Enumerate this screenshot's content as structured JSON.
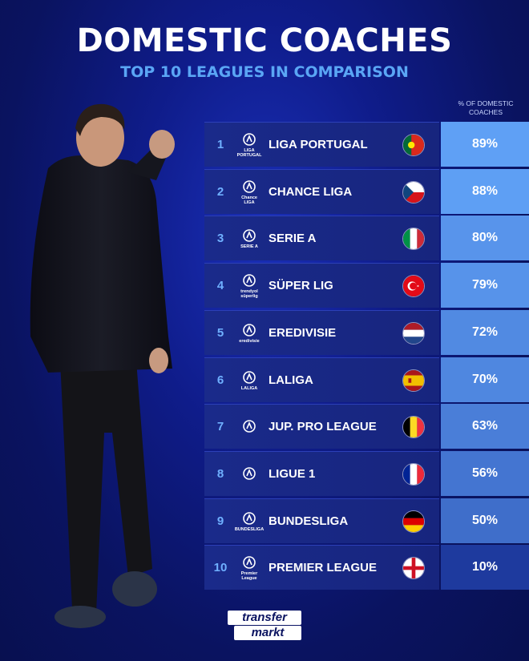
{
  "header": {
    "title": "DOMESTIC COACHES",
    "subtitle": "TOP 10 LEAGUES IN COMPARISON",
    "column_label": "% OF DOMESTIC COACHES"
  },
  "brand": {
    "line1": "transfer",
    "line2": "markt"
  },
  "colors": {
    "accent_blue": "#5aa6f5",
    "row_bg": "#1a2a8a",
    "pct_high": "#4f8fe6",
    "pct_low": "#1e3a9e"
  },
  "chart_data": {
    "type": "table",
    "title": "DOMESTIC COACHES",
    "subtitle": "TOP 10 LEAGUES IN COMPARISON",
    "ylabel": "% OF DOMESTIC COACHES",
    "rows": [
      {
        "rank": "1",
        "league": "LIGA PORTUGAL",
        "logo_text": "LIGA PORTUGAL",
        "country": "portugal",
        "value": 89,
        "label": "89%"
      },
      {
        "rank": "2",
        "league": "CHANCE LIGA",
        "logo_text": "Chance LIGA",
        "country": "czechia",
        "value": 88,
        "label": "88%"
      },
      {
        "rank": "3",
        "league": "SERIE A",
        "logo_text": "SERIE A",
        "country": "italy",
        "value": 80,
        "label": "80%"
      },
      {
        "rank": "4",
        "league": "SÜPER LIG",
        "logo_text": "trendyol süperlig",
        "country": "turkey",
        "value": 79,
        "label": "79%"
      },
      {
        "rank": "5",
        "league": "EREDIVISIE",
        "logo_text": "eredivisie",
        "country": "netherlands",
        "value": 72,
        "label": "72%"
      },
      {
        "rank": "6",
        "league": "LALIGA",
        "logo_text": "LALIGA",
        "country": "spain",
        "value": 70,
        "label": "70%"
      },
      {
        "rank": "7",
        "league": "JUP. PRO LEAGUE",
        "logo_text": "",
        "country": "belgium",
        "value": 63,
        "label": "63%"
      },
      {
        "rank": "8",
        "league": "LIGUE 1",
        "logo_text": "",
        "country": "france",
        "value": 56,
        "label": "56%"
      },
      {
        "rank": "9",
        "league": "BUNDESLIGA",
        "logo_text": "BUNDESLIGA",
        "country": "germany",
        "value": 50,
        "label": "50%"
      },
      {
        "rank": "10",
        "league": "PREMIER LEAGUE",
        "logo_text": "Premier League",
        "country": "england",
        "value": 10,
        "label": "10%"
      }
    ]
  }
}
